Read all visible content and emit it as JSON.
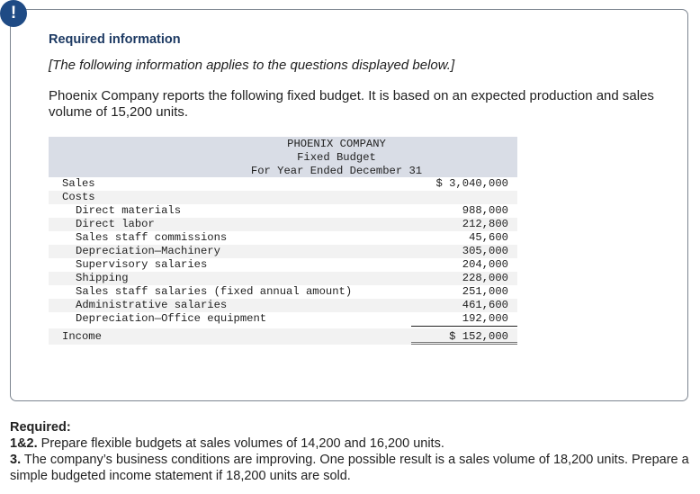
{
  "info_box": {
    "badge_glyph": "!",
    "badge_icon": "alert-icon",
    "title": "Required information",
    "note": "[The following information applies to the questions displayed below.]",
    "intro": "Phoenix Company reports the following fixed budget. It is based on an expected production and sales volume of 15,200 units."
  },
  "budget": {
    "header": {
      "company": "PHOENIX COMPANY",
      "statement": "Fixed Budget",
      "period": "For Year Ended December 31"
    },
    "sales": {
      "label": "Sales",
      "value": "$ 3,040,000"
    },
    "costs_label": "Costs",
    "costs": [
      {
        "label": "Direct materials",
        "value": "988,000"
      },
      {
        "label": "Direct labor",
        "value": "212,800"
      },
      {
        "label": "Sales staff commissions",
        "value": "45,600"
      },
      {
        "label": "Depreciation—Machinery",
        "value": "305,000"
      },
      {
        "label": "Supervisory salaries",
        "value": "204,000"
      },
      {
        "label": "Shipping",
        "value": "228,000"
      },
      {
        "label": "Sales staff salaries (fixed annual amount)",
        "value": "251,000"
      },
      {
        "label": "Administrative salaries",
        "value": "461,600"
      },
      {
        "label": "Depreciation—Office equipment",
        "value": "192,000"
      }
    ],
    "income": {
      "label": "Income",
      "value": "$ 152,000"
    }
  },
  "required": {
    "heading": "Required:",
    "items": [
      {
        "num": "1&2.",
        "text": " Prepare flexible budgets at sales volumes of 14,200 and 16,200 units."
      },
      {
        "num": "3.",
        "text": " The company’s business conditions are improving. One possible result is a sales volume of 18,200 units. Prepare a simple budgeted income statement if 18,200 units are sold."
      }
    ]
  },
  "colors": {
    "badge": "#1f4b85",
    "title": "#1d3a63",
    "table_header_bg": "#d9dde6",
    "row_alt_bg": "#f2f2f2",
    "box_border": "#7d8590"
  }
}
